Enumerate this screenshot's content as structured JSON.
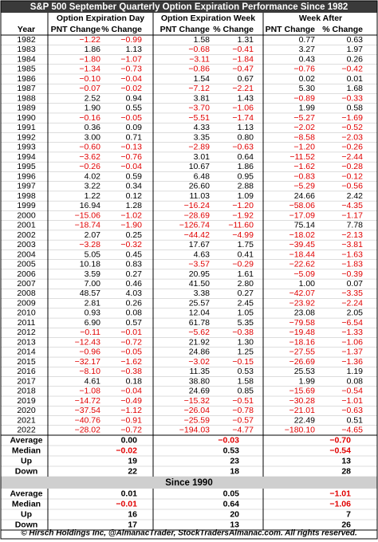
{
  "header": {
    "title": "S&P 500 September Quarterly Option Expiration Performance Since 1982"
  },
  "table": {
    "group_headers": [
      "Option Expiration Day",
      "Option Expiration Week",
      "Week After"
    ],
    "column_headers": [
      "Year",
      "PNT Change",
      "% Change",
      "PNT Change",
      "% Change",
      "PNT Change",
      "% Change"
    ],
    "rows": [
      [
        "1982",
        "−1.22",
        "−0.99",
        "1.58",
        "1.31",
        "0.77",
        "0.63"
      ],
      [
        "1983",
        "1.86",
        "1.13",
        "−0.68",
        "−0.41",
        "3.27",
        "1.97"
      ],
      [
        "1984",
        "−1.80",
        "−1.07",
        "−3.11",
        "−1.84",
        "0.43",
        "0.26"
      ],
      [
        "1985",
        "−1.34",
        "−0.73",
        "−0.86",
        "−0.47",
        "−0.76",
        "−0.42"
      ],
      [
        "1986",
        "−0.10",
        "−0.04",
        "1.54",
        "0.67",
        "0.02",
        "0.01"
      ],
      [
        "1987",
        "−0.07",
        "−0.02",
        "−7.12",
        "−2.21",
        "5.30",
        "1.68"
      ],
      [
        "1988",
        "2.52",
        "0.94",
        "3.81",
        "1.43",
        "−0.89",
        "−0.33"
      ],
      [
        "1989",
        "1.90",
        "0.55",
        "−3.70",
        "−1.06",
        "1.99",
        "0.58"
      ],
      [
        "1990",
        "−0.16",
        "−0.05",
        "−5.51",
        "−1.74",
        "−5.27",
        "−1.69"
      ],
      [
        "1991",
        "0.36",
        "0.09",
        "4.33",
        "1.13",
        "−2.02",
        "−0.52"
      ],
      [
        "1992",
        "3.00",
        "0.71",
        "3.35",
        "0.80",
        "−8.58",
        "−2.03"
      ],
      [
        "1993",
        "−0.60",
        "−0.13",
        "−2.89",
        "−0.63",
        "−1.20",
        "−0.26"
      ],
      [
        "1994",
        "−3.62",
        "−0.76",
        "3.01",
        "0.64",
        "−11.52",
        "−2.44"
      ],
      [
        "1995",
        "−0.26",
        "−0.04",
        "10.67",
        "1.86",
        "−1.62",
        "−0.28"
      ],
      [
        "1996",
        "4.02",
        "0.59",
        "6.48",
        "0.95",
        "−0.83",
        "−0.12"
      ],
      [
        "1997",
        "3.22",
        "0.34",
        "26.60",
        "2.88",
        "−5.29",
        "−0.56"
      ],
      [
        "1998",
        "1.22",
        "0.12",
        "11.03",
        "1.09",
        "24.66",
        "2.42"
      ],
      [
        "1999",
        "16.94",
        "1.28",
        "−16.24",
        "−1.20",
        "−58.06",
        "−4.35"
      ],
      [
        "2000",
        "−15.06",
        "−1.02",
        "−28.69",
        "−1.92",
        "−17.09",
        "−1.17"
      ],
      [
        "2001",
        "−18.74",
        "−1.90",
        "−126.74",
        "−11.60",
        "75.14",
        "7.78"
      ],
      [
        "2002",
        "2.07",
        "0.25",
        "−44.42",
        "−4.99",
        "−18.02",
        "−2.13"
      ],
      [
        "2003",
        "−3.28",
        "−0.32",
        "17.67",
        "1.75",
        "−39.45",
        "−3.81"
      ],
      [
        "2004",
        "5.05",
        "0.45",
        "4.63",
        "0.41",
        "−18.44",
        "−1.63"
      ],
      [
        "2005",
        "10.18",
        "0.83",
        "−3.57",
        "−0.29",
        "−22.62",
        "−1.83"
      ],
      [
        "2006",
        "3.59",
        "0.27",
        "20.95",
        "1.61",
        "−5.09",
        "−0.39"
      ],
      [
        "2007",
        "7.00",
        "0.46",
        "41.50",
        "2.80",
        "1.00",
        "0.07"
      ],
      [
        "2008",
        "48.57",
        "4.03",
        "3.38",
        "0.27",
        "−42.07",
        "−3.35"
      ],
      [
        "2009",
        "2.81",
        "0.26",
        "25.57",
        "2.45",
        "−23.92",
        "−2.24"
      ],
      [
        "2010",
        "0.93",
        "0.08",
        "12.04",
        "1.05",
        "23.08",
        "2.05"
      ],
      [
        "2011",
        "6.90",
        "0.57",
        "61.78",
        "5.35",
        "−79.58",
        "−6.54"
      ],
      [
        "2012",
        "−0.11",
        "−0.01",
        "−5.62",
        "−0.38",
        "−19.48",
        "−1.33"
      ],
      [
        "2013",
        "−12.43",
        "−0.72",
        "21.92",
        "1.30",
        "−18.16",
        "−1.06"
      ],
      [
        "2014",
        "−0.96",
        "−0.05",
        "24.86",
        "1.25",
        "−27.55",
        "−1.37"
      ],
      [
        "2015",
        "−32.17",
        "−1.62",
        "−3.02",
        "−0.15",
        "−26.69",
        "−1.36"
      ],
      [
        "2016",
        "−8.10",
        "−0.38",
        "11.35",
        "0.53",
        "25.53",
        "1.19"
      ],
      [
        "2017",
        "4.61",
        "0.18",
        "38.80",
        "1.58",
        "1.99",
        "0.08"
      ],
      [
        "2018",
        "−1.08",
        "−0.04",
        "24.69",
        "0.85",
        "−15.69",
        "−0.54"
      ],
      [
        "2019",
        "−14.72",
        "−0.49",
        "−15.32",
        "−0.51",
        "−30.28",
        "−1.01"
      ],
      [
        "2020",
        "−37.54",
        "−1.12",
        "−26.04",
        "−0.78",
        "−21.01",
        "−0.63"
      ],
      [
        "2021",
        "−40.76",
        "−0.91",
        "−25.59",
        "−0.57",
        "22.49",
        "0.51"
      ],
      [
        "2022",
        "−28.02",
        "−0.72",
        "−194.03",
        "−4.77",
        "−180.10",
        "−4.65"
      ]
    ],
    "summary": [
      [
        "Average",
        "0.00",
        "−0.03",
        "−0.70"
      ],
      [
        "Median",
        "−0.02",
        "0.53",
        "−0.54"
      ],
      [
        "Up",
        "19",
        "23",
        "13"
      ],
      [
        "Down",
        "22",
        "18",
        "28"
      ]
    ],
    "since_title": "Since 1990",
    "since_summary": [
      [
        "Average",
        "0.01",
        "0.05",
        "−1.01"
      ],
      [
        "Median",
        "−0.01",
        "0.64",
        "−1.06"
      ],
      [
        "Up",
        "16",
        "20",
        "7"
      ],
      [
        "Down",
        "17",
        "13",
        "26"
      ]
    ]
  },
  "footer": "© Hirsch Holdings Inc, @AlmanacTrader, StockTradersAlmanac.com. All rights reserved."
}
